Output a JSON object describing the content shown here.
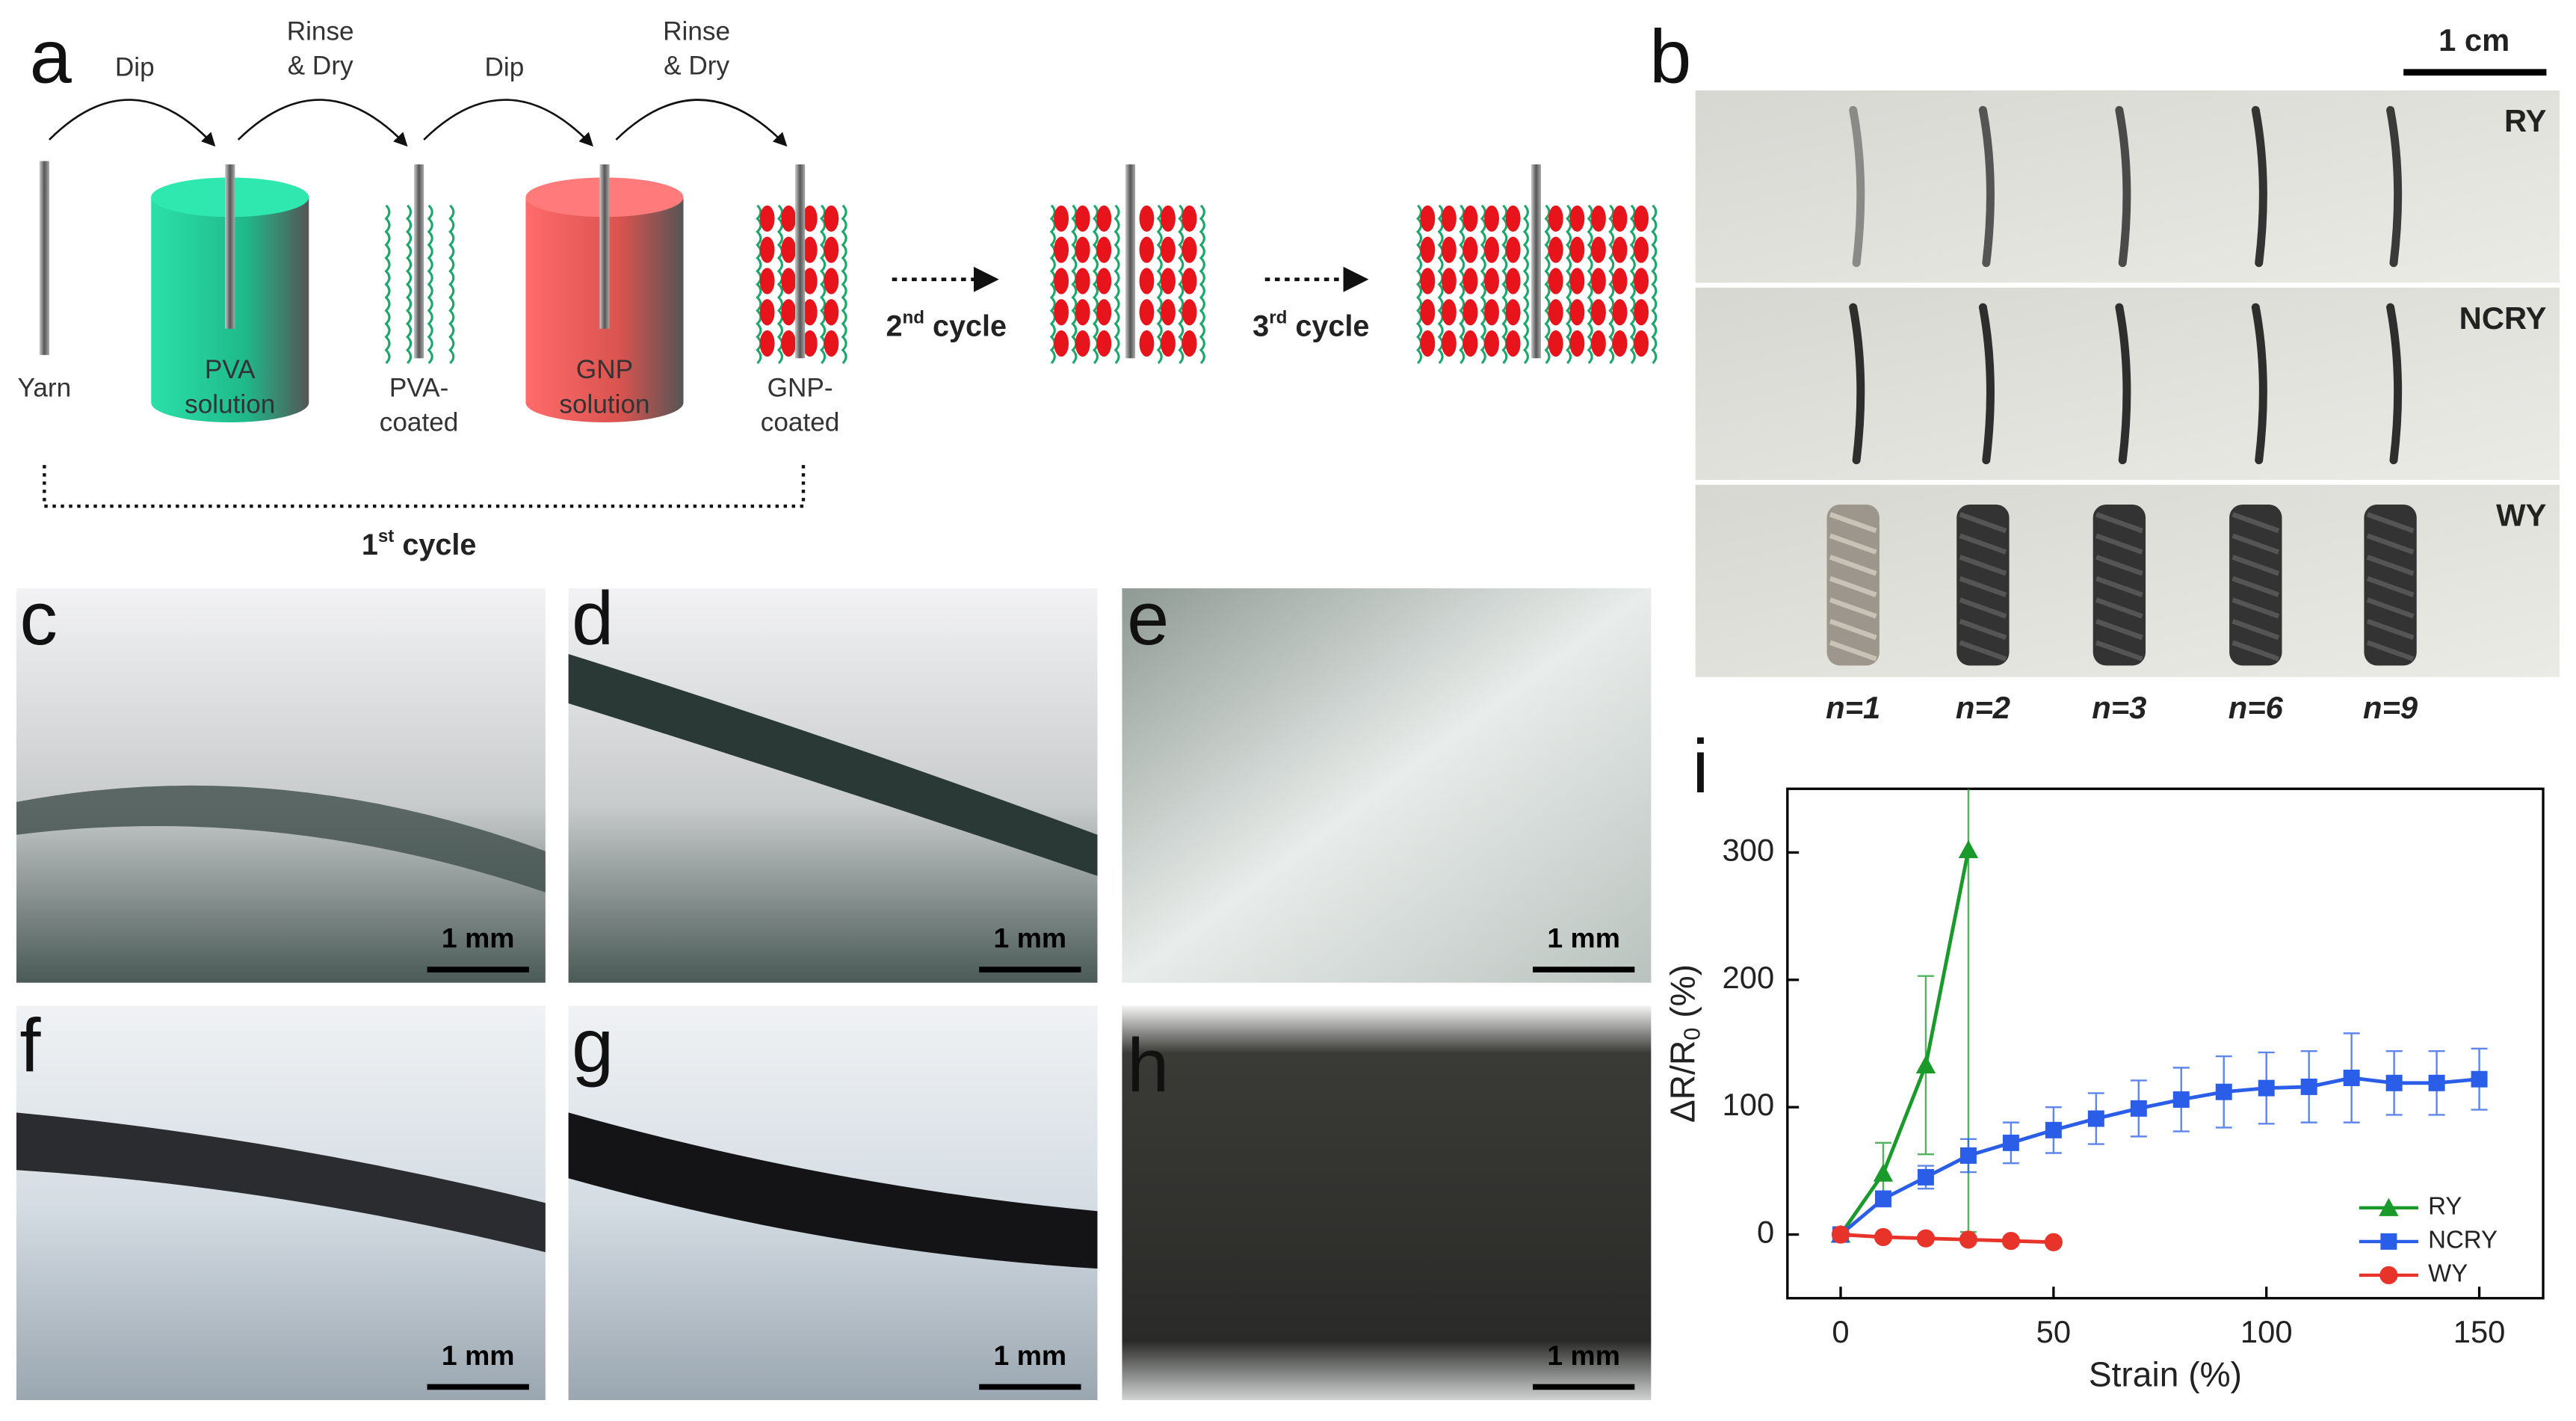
{
  "panel_labels": [
    "a",
    "b",
    "c",
    "d",
    "e",
    "f",
    "g",
    "h",
    "i"
  ],
  "diagram": {
    "steps": [
      [
        "Dip"
      ],
      [
        "Rinse",
        "& Dry"
      ],
      [
        "Dip"
      ],
      [
        "Rinse",
        "& Dry"
      ]
    ],
    "items": [
      [
        "Yarn"
      ],
      [
        "PVA",
        "solution"
      ],
      [
        "PVA-",
        "coated"
      ],
      [
        "GNP",
        "solution"
      ],
      [
        "GNP-",
        "coated"
      ]
    ],
    "cycles": [
      {
        "num": "1",
        "sup": "st",
        "text": " cycle"
      },
      {
        "num": "2",
        "sup": "nd",
        "text": " cycle"
      },
      {
        "num": "3",
        "sup": "rd",
        "text": " cycle"
      }
    ]
  },
  "panel_b": {
    "scale": "1 cm",
    "rows": [
      "RY",
      "NCRY",
      "WY"
    ],
    "columns": [
      "n=1",
      "n=2",
      "n=3",
      "n=6",
      "n=9"
    ]
  },
  "micro_scale_bars": [
    "1 mm",
    "1 mm",
    "1 mm",
    "1 mm",
    "1 mm",
    "1 mm"
  ],
  "chart_data": {
    "type": "line",
    "x_label": "Strain (%)",
    "y_label": {
      "main": "ΔR/R",
      "sub": "0",
      "unit": " (%)"
    },
    "xlim": [
      -12.5,
      165
    ],
    "ylim": [
      -50,
      350
    ],
    "xticks": [
      0,
      50,
      100,
      150
    ],
    "yticks": [
      0,
      100,
      200,
      300
    ],
    "legend": "lower right",
    "series": [
      {
        "name": "RY",
        "color": "#1a9a2a",
        "marker": "triangle",
        "x": [
          0,
          10,
          20,
          30
        ],
        "values": [
          0,
          48,
          133,
          302
        ],
        "errors": [
          0,
          24,
          70,
          300
        ]
      },
      {
        "name": "NCRY",
        "color": "#2a5ee8",
        "marker": "square",
        "x": [
          0,
          10,
          20,
          30,
          40,
          50,
          60,
          70,
          80,
          90,
          100,
          110,
          120,
          130,
          140,
          150
        ],
        "values": [
          0,
          28,
          45,
          62,
          72,
          82,
          91,
          99,
          106,
          112,
          115,
          116,
          123,
          119,
          119,
          122
        ],
        "errors": [
          0,
          6,
          9,
          13,
          16,
          18,
          20,
          22,
          25,
          28,
          28,
          28,
          35,
          25,
          25,
          24
        ]
      },
      {
        "name": "WY",
        "color": "#e8332a",
        "marker": "circle",
        "x": [
          0,
          10,
          20,
          30,
          40,
          50
        ],
        "values": [
          0,
          -2,
          -3,
          -4,
          -5,
          -6
        ],
        "errors": [
          0,
          0,
          0,
          0,
          0,
          0
        ]
      }
    ]
  }
}
